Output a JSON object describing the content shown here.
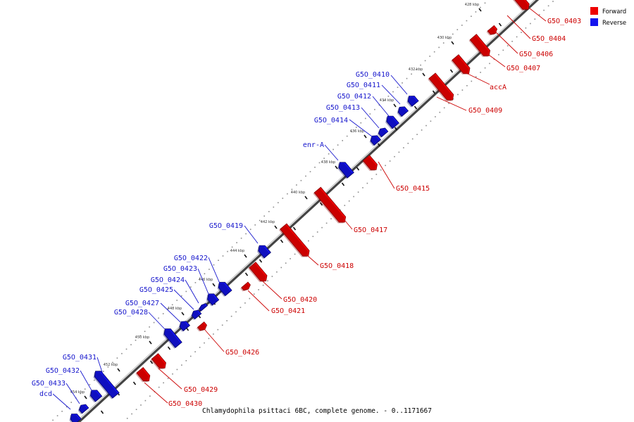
{
  "caption": "Chlamydophila psittaci 6BC, complete genome. - 0..1171667",
  "legend": [
    {
      "label": "Forward",
      "color": "#ee0000"
    },
    {
      "label": "Reverse",
      "color": "#1414ee"
    }
  ],
  "axis_ticks": [
    "428 kbp",
    "430 kbp",
    "432 kbp",
    "434 kbp",
    "436 kbp",
    "438 kbp",
    "440 kbp",
    "442 kbp",
    "444 kbp",
    "446 kbp",
    "448 kbp",
    "450 kbp",
    "452 kbp",
    "454 kbp"
  ],
  "forward_genes": [
    "G5O_0403",
    "G5O_0404",
    "G5O_0406",
    "G5O_0407",
    "accA",
    "G5O_0409",
    "G5O_0415",
    "G5O_0417",
    "G5O_0418",
    "G5O_0420",
    "G5O_0421",
    "G5O_0426",
    "G5O_0429",
    "G5O_0430"
  ],
  "reverse_genes": [
    "G5O_0410",
    "G5O_0411",
    "G5O_0412",
    "G5O_0413",
    "G5O_0414",
    "enr-A",
    "G5O_0419",
    "G5O_0422",
    "G5O_0423",
    "G5O_0424",
    "G5O_0425",
    "G5O_0427",
    "G5O_0428",
    "G5O_0431",
    "G5O_0432",
    "G5O_0433",
    "dcd"
  ]
}
